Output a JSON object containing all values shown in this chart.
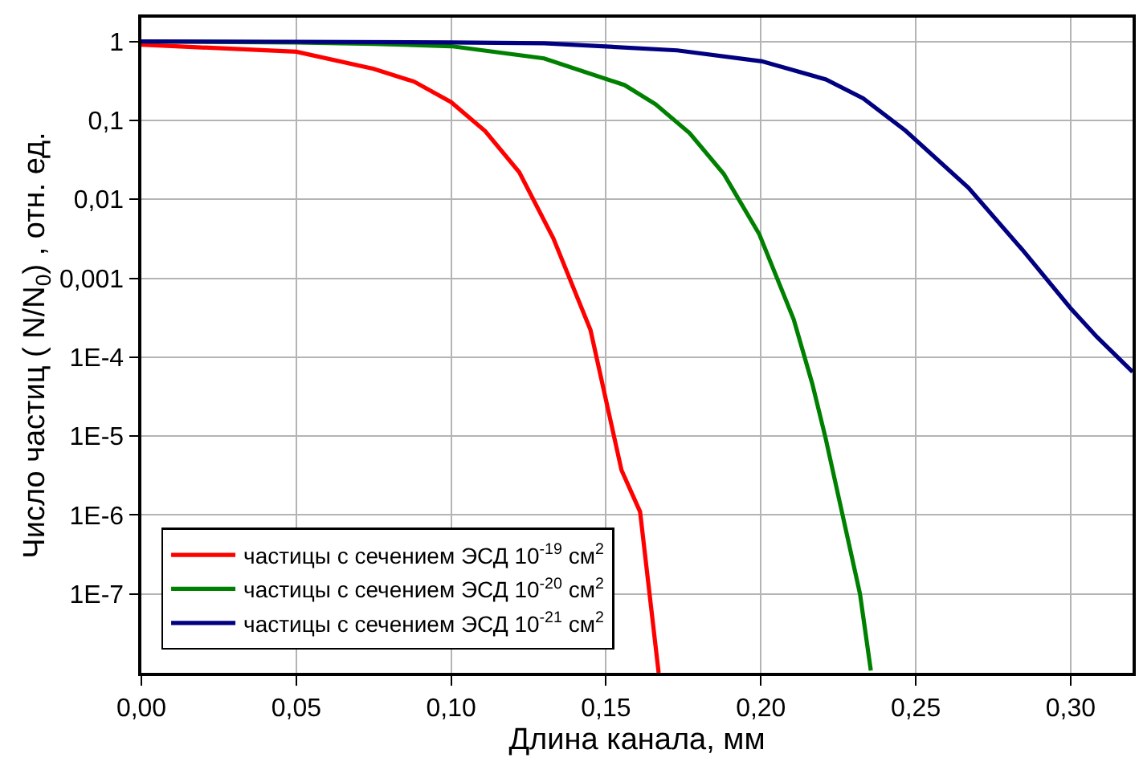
{
  "chart_data": {
    "type": "line",
    "xlabel": "Длина канала, мм",
    "ylabel": "Число частиц ( N/N$_{0}$) , отн. ед.",
    "log": "y",
    "grid": true,
    "legend": "bottom left",
    "line_style": "solid",
    "marker": "none",
    "xlim": [
      0,
      0.32
    ],
    "xticks": [
      {
        "value": 0,
        "label": "0,00"
      },
      {
        "value": 0.05,
        "label": "0,05"
      },
      {
        "value": 0.1,
        "label": "0,10"
      },
      {
        "value": 0.15,
        "label": "0,15"
      },
      {
        "value": 0.2,
        "label": "0,20"
      },
      {
        "value": 0.25,
        "label": "0,25"
      },
      {
        "value": 0.3,
        "label": "0,30"
      }
    ],
    "ylim": [
      1e-08,
      2
    ],
    "yticks": [
      {
        "value": 1e-07,
        "label": "1E-7"
      },
      {
        "value": 1e-06,
        "label": "1E-6"
      },
      {
        "value": 1e-05,
        "label": "1E-5"
      },
      {
        "value": 0.0001,
        "label": "1E-4"
      },
      {
        "value": 0.001,
        "label": "0,001"
      },
      {
        "value": 0.01,
        "label": "0,01"
      },
      {
        "value": 0.1,
        "label": "0,1"
      },
      1
    ],
    "series": [
      {
        "name": "частицы с сечением ЭСД 10$^{-19}$ см$^{2}$",
        "color": "#ff0000",
        "x": [
          0,
          0.05,
          0.075,
          0.088,
          0.1,
          0.111,
          0.122,
          0.133,
          0.145,
          0.155,
          0.161,
          0.167
        ],
        "values": [
          0.91,
          0.74,
          0.45,
          0.31,
          0.17,
          0.073,
          0.022,
          0.0032,
          0.00022,
          3.7e-06,
          1.1e-06,
          1e-08
        ]
      },
      {
        "name": "частицы с сечением ЭСД 10$^{-20}$ см$^{2}$",
        "color": "#008000",
        "x": [
          0,
          0.05,
          0.075,
          0.1,
          0.13,
          0.156,
          0.166,
          0.177,
          0.188,
          0.1995,
          0.2106,
          0.2166,
          0.2209,
          0.232,
          0.2355
        ],
        "values": [
          1,
          0.97,
          0.93,
          0.87,
          0.61,
          0.28,
          0.16,
          0.069,
          0.021,
          0.0036,
          0.0003,
          4.6e-05,
          9.4e-06,
          1e-07,
          1.07e-08
        ]
      },
      {
        "name": "частицы с сечением ЭСД 10$^{-21}$ см$^{2}$",
        "color": "#000080",
        "x": [
          0,
          0.05,
          0.1,
          0.13,
          0.173,
          0.2003,
          0.221,
          0.233,
          0.2467,
          0.267,
          0.2844,
          0.2999,
          0.3085,
          0.32
        ],
        "values": [
          1,
          0.99,
          0.97,
          0.95,
          0.77,
          0.56,
          0.33,
          0.19,
          0.074,
          0.014,
          0.0023,
          0.00042,
          0.00018,
          6.5e-05
        ]
      }
    ]
  }
}
